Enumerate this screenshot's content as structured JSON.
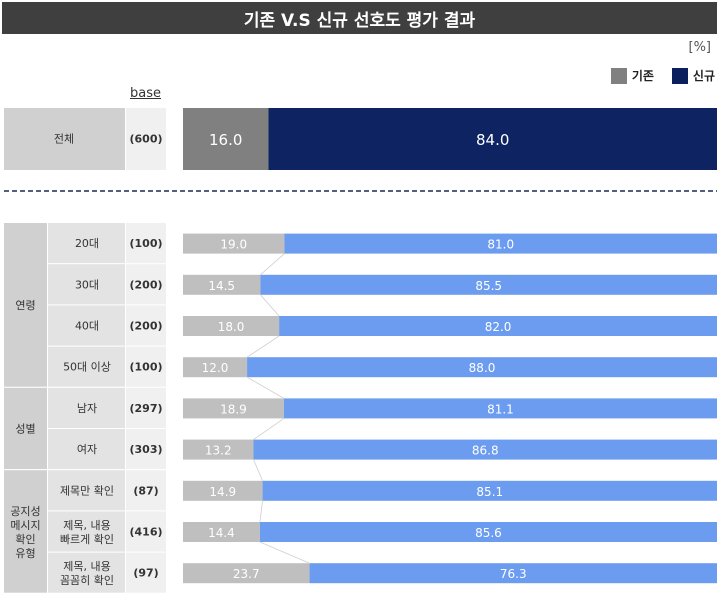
{
  "title": "기존 V.S 신규 선호도 평가 결과",
  "unit": "[%]",
  "base_header": "base",
  "legend": [
    {
      "label": "기존",
      "color": "#808080"
    },
    {
      "label": "신규",
      "color": "#0a1f5c"
    }
  ],
  "colors": {
    "existing_total": "#808080",
    "new_total": "#0e2462",
    "existing_row": "#bfbfbf",
    "new_row": "#6c9cf0",
    "label_group": "#d0d0d0",
    "label_sub": "#e3e3e3",
    "label_base": "#f0f0f0"
  },
  "chart_data": {
    "type": "bar",
    "orientation": "horizontal",
    "stacked": true,
    "percent": true,
    "title": "기존 V.S 신규 선호도 평가 결과",
    "series": [
      {
        "name": "기존",
        "values": [
          16.0,
          19.0,
          14.5,
          18.0,
          12.0,
          18.9,
          13.2,
          14.9,
          14.4,
          23.7
        ]
      },
      {
        "name": "신규",
        "values": [
          84.0,
          81.0,
          85.5,
          82.0,
          88.0,
          81.1,
          86.8,
          85.1,
          85.6,
          76.3
        ]
      }
    ],
    "total": {
      "label": "전체",
      "base": "(600)",
      "existing": 16.0,
      "new": 84.0
    },
    "groups": [
      {
        "name": "연령",
        "rows": [
          {
            "label": "20대",
            "base": "(100)",
            "existing": 19.0,
            "new": 81.0
          },
          {
            "label": "30대",
            "base": "(200)",
            "existing": 14.5,
            "new": 85.5
          },
          {
            "label": "40대",
            "base": "(200)",
            "existing": 18.0,
            "new": 82.0
          },
          {
            "label": "50대 이상",
            "base": "(100)",
            "existing": 12.0,
            "new": 88.0
          }
        ]
      },
      {
        "name": "성별",
        "rows": [
          {
            "label": "남자",
            "base": "(297)",
            "existing": 18.9,
            "new": 81.1
          },
          {
            "label": "여자",
            "base": "(303)",
            "existing": 13.2,
            "new": 86.8
          }
        ]
      },
      {
        "name": "공지성\n메시지\n확인\n유형",
        "rows": [
          {
            "label": "제목만 확인",
            "base": "(87)",
            "existing": 14.9,
            "new": 85.1
          },
          {
            "label": "제목, 내용\n빠르게 확인",
            "base": "(416)",
            "existing": 14.4,
            "new": 85.6
          },
          {
            "label": "제목, 내용\n꼼꼼히 확인",
            "base": "(97)",
            "existing": 23.7,
            "new": 76.3
          }
        ]
      }
    ]
  }
}
